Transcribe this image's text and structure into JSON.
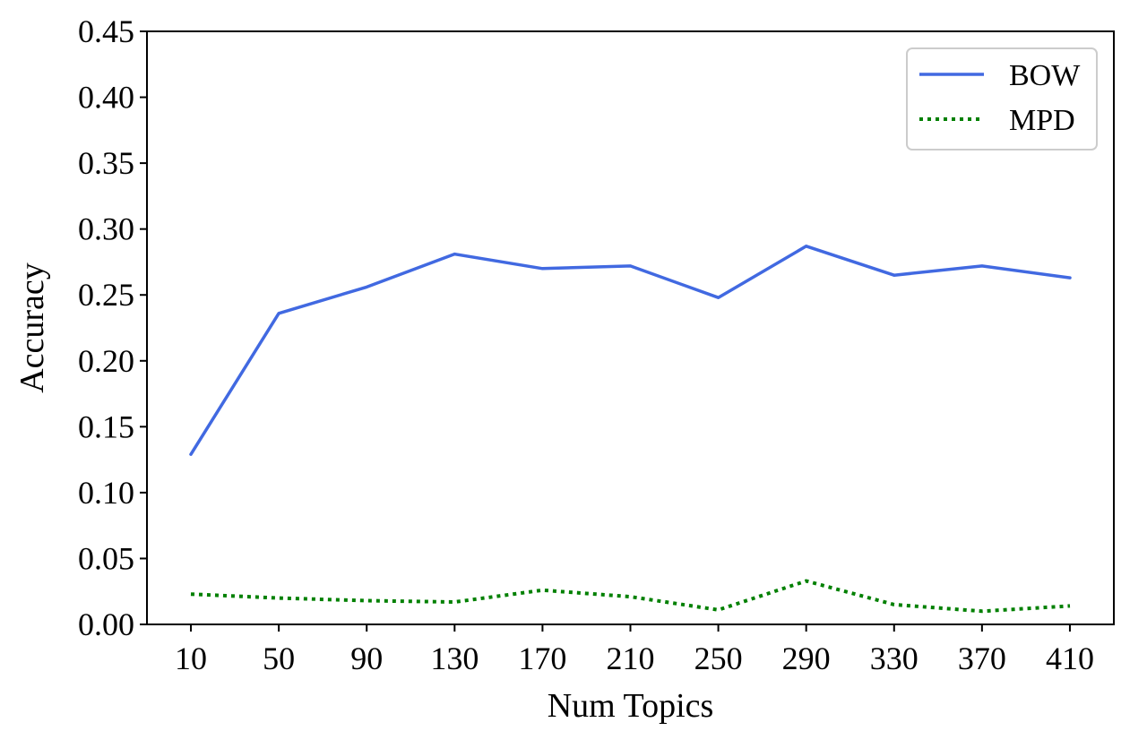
{
  "chart_data": {
    "type": "line",
    "xlabel": "Num Topics",
    "ylabel": "Accuracy",
    "x": [
      10,
      50,
      90,
      130,
      170,
      210,
      250,
      290,
      330,
      370,
      410
    ],
    "x_tick_labels": [
      "10",
      "50",
      "90",
      "130",
      "170",
      "210",
      "250",
      "290",
      "330",
      "370",
      "410"
    ],
    "y_ticks": [
      0.0,
      0.05,
      0.1,
      0.15,
      0.2,
      0.25,
      0.3,
      0.35,
      0.4,
      0.45
    ],
    "y_tick_labels": [
      "0.00",
      "0.05",
      "0.10",
      "0.15",
      "0.20",
      "0.25",
      "0.30",
      "0.35",
      "0.40",
      "0.45"
    ],
    "ylim": [
      0.0,
      0.45
    ],
    "xlim": [
      -10,
      430
    ],
    "grid": false,
    "legend_position": "top-right",
    "series": [
      {
        "name": "BOW",
        "color": "#4169e1",
        "style": "solid",
        "values": [
          0.129,
          0.236,
          0.256,
          0.281,
          0.27,
          0.272,
          0.248,
          0.287,
          0.265,
          0.272,
          0.263
        ]
      },
      {
        "name": "MPD",
        "color": "#008000",
        "style": "dotted",
        "values": [
          0.023,
          0.02,
          0.018,
          0.017,
          0.026,
          0.021,
          0.011,
          0.033,
          0.015,
          0.01,
          0.014
        ]
      }
    ]
  }
}
